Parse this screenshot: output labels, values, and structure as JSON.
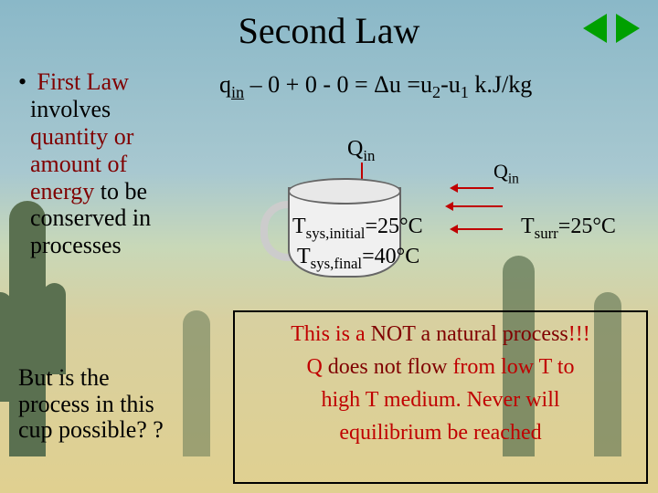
{
  "title": "Second Law",
  "equation": {
    "prefix": "q",
    "q_sub": "in",
    "rest": " – 0 + 0 - 0 = Δu =u",
    "u2_sub": "2",
    "mid": "-u",
    "u1_sub": "1",
    "units": " k.J/kg"
  },
  "left": {
    "bullet": "•",
    "first_law": "First Law",
    "line2": "involves",
    "quantity": "quantity or",
    "amount": "amount of",
    "energy": "energy",
    "line6": " to be",
    "line7": "conserved in",
    "line8": "processes"
  },
  "qin": {
    "Q": "Q",
    "sub": "in"
  },
  "tsys_initial": {
    "T": "T",
    "sub": "sys,initial",
    "val": "=25°C"
  },
  "tsys_final": {
    "T": "T",
    "sub": "sys,final",
    "val": "=40°C"
  },
  "tsurr": {
    "T": "T",
    "sub": "surr",
    "val": "=25°C"
  },
  "bottom_left": {
    "l1": "But is the",
    "l2": "process in this",
    "l3": "cup possible? ?"
  },
  "box": {
    "l1a": "This is a ",
    "l1b": "NOT a natural process",
    "l1c": "!!!",
    "l2a": "Q ",
    "l2b": "does not flow",
    "l2c": " from low T to",
    "l3": "high T medium. Never will",
    "l4": "equilibrium be reached"
  }
}
